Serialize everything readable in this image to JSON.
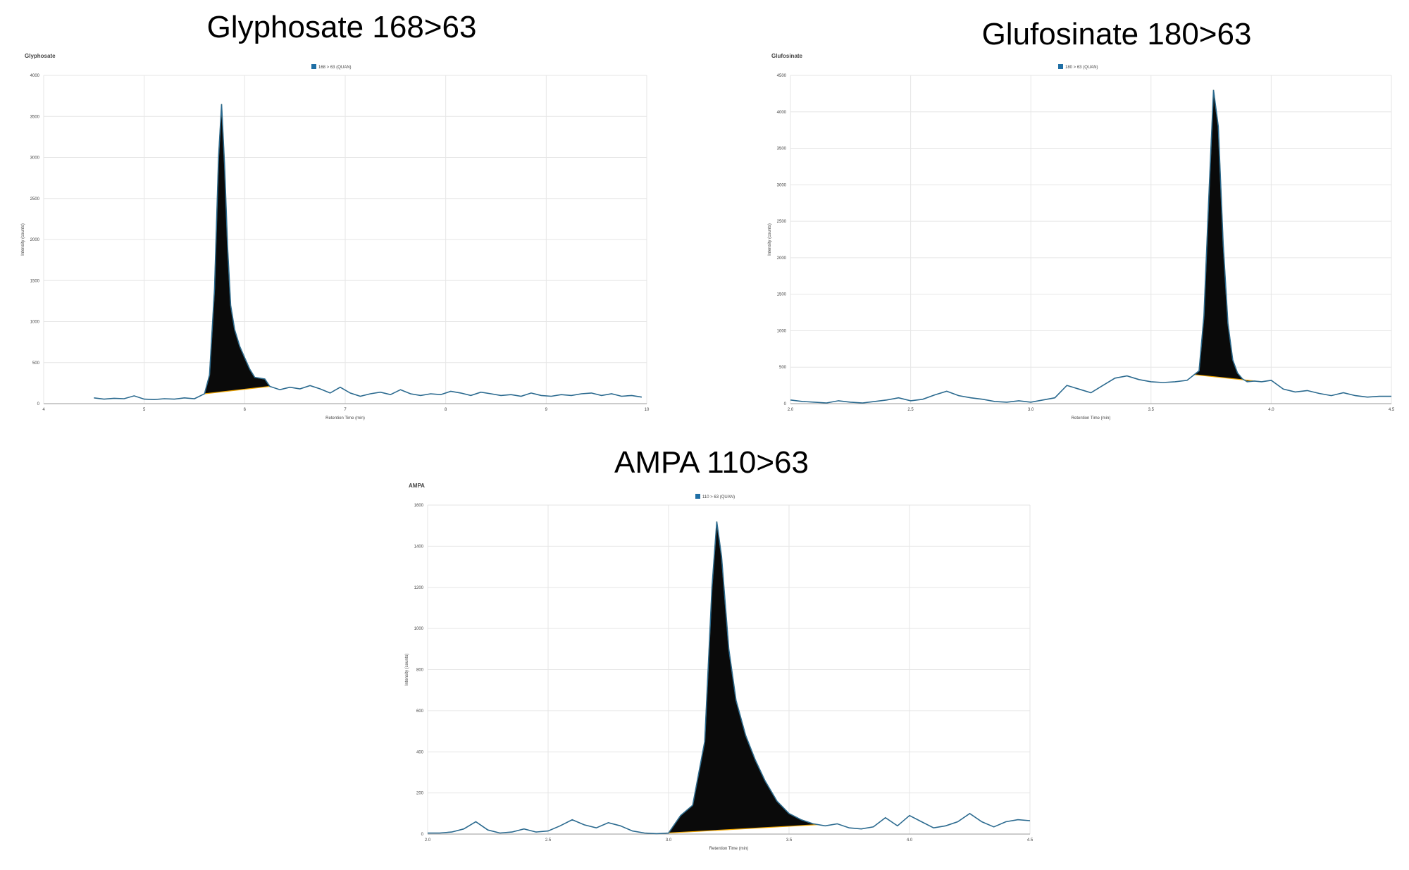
{
  "titles": {
    "glyphosate": "Glyphosate 168>63",
    "glufosinate": "Glufosinate 180>63",
    "ampa": "AMPA 110>63"
  },
  "colors": {
    "trace": "#2b6a8f",
    "peak_fill": "#0a0a0a",
    "baseline": "#f0a500",
    "grid": "#e6e6e6",
    "legend_swatch": "#1f6fa5"
  },
  "chart_data": [
    {
      "type": "line",
      "panel_label": "Glyphosate",
      "legend": "168 > 63 (QUAN)",
      "xlabel": "Retention Time (min)",
      "ylabel": "Intensity (counts)",
      "xlim": [
        4,
        10
      ],
      "ylim": [
        0,
        4000
      ],
      "xticks": [
        "4",
        "5",
        "6",
        "7",
        "8",
        "9",
        "10"
      ],
      "yticks": [
        "0",
        "500",
        "1000",
        "1500",
        "2000",
        "2500",
        "3000",
        "3500",
        "4000"
      ],
      "trace": {
        "x": [
          4.5,
          4.6,
          4.7,
          4.8,
          4.9,
          5.0,
          5.1,
          5.2,
          5.3,
          5.4,
          5.5,
          5.6,
          5.65,
          5.7,
          5.74,
          5.77,
          5.8,
          5.83,
          5.86,
          5.9,
          5.95,
          6.0,
          6.05,
          6.1,
          6.2,
          6.25,
          6.35,
          6.45,
          6.55,
          6.65,
          6.75,
          6.85,
          6.95,
          7.05,
          7.15,
          7.25,
          7.35,
          7.45,
          7.55,
          7.65,
          7.75,
          7.85,
          7.95,
          8.05,
          8.15,
          8.25,
          8.35,
          8.45,
          8.55,
          8.65,
          8.75,
          8.85,
          8.95,
          9.05,
          9.15,
          9.25,
          9.35,
          9.45,
          9.55,
          9.65,
          9.75,
          9.85,
          9.95
        ],
        "y": [
          70,
          55,
          65,
          60,
          95,
          55,
          50,
          60,
          55,
          70,
          60,
          120,
          350,
          1400,
          3000,
          3650,
          2900,
          1900,
          1200,
          900,
          700,
          560,
          420,
          320,
          300,
          210,
          170,
          200,
          180,
          220,
          180,
          130,
          200,
          130,
          90,
          120,
          140,
          110,
          170,
          120,
          100,
          120,
          110,
          150,
          130,
          100,
          140,
          120,
          100,
          110,
          90,
          130,
          100,
          90,
          110,
          100,
          120,
          130,
          100,
          120,
          90,
          100,
          80
        ]
      },
      "peak_range": [
        5.6,
        6.25
      ]
    },
    {
      "type": "line",
      "panel_label": "Glufosinate",
      "legend": "180 > 63 (QUAN)",
      "xlabel": "Retention Time (min)",
      "ylabel": "Intensity (counts)",
      "xlim": [
        2.0,
        4.5
      ],
      "ylim": [
        0,
        4500
      ],
      "xticks": [
        "2.0",
        "2.5",
        "3.0",
        "3.5",
        "4.0",
        "4.5"
      ],
      "yticks": [
        "0",
        "500",
        "1000",
        "1500",
        "2000",
        "2500",
        "3000",
        "3500",
        "4000",
        "4500"
      ],
      "trace": {
        "x": [
          2.0,
          2.05,
          2.1,
          2.15,
          2.2,
          2.25,
          2.3,
          2.35,
          2.4,
          2.45,
          2.5,
          2.55,
          2.6,
          2.65,
          2.7,
          2.75,
          2.8,
          2.85,
          2.9,
          2.95,
          3.0,
          3.05,
          3.1,
          3.15,
          3.2,
          3.25,
          3.3,
          3.35,
          3.4,
          3.45,
          3.5,
          3.55,
          3.6,
          3.65,
          3.7,
          3.72,
          3.74,
          3.76,
          3.78,
          3.8,
          3.82,
          3.84,
          3.86,
          3.88,
          3.9,
          3.93,
          3.96,
          4.0,
          4.05,
          4.1,
          4.15,
          4.2,
          4.25,
          4.3,
          4.35,
          4.4,
          4.45,
          4.5
        ],
        "y": [
          50,
          30,
          20,
          10,
          40,
          20,
          10,
          30,
          50,
          80,
          40,
          60,
          120,
          170,
          110,
          80,
          60,
          30,
          20,
          40,
          20,
          50,
          80,
          250,
          200,
          150,
          250,
          350,
          380,
          330,
          300,
          290,
          300,
          320,
          450,
          1200,
          2800,
          4300,
          3800,
          2200,
          1100,
          600,
          420,
          340,
          300,
          310,
          300,
          320,
          200,
          160,
          180,
          140,
          110,
          150,
          110,
          90,
          100,
          100
        ]
      },
      "peak_range": [
        3.68,
        3.96
      ]
    },
    {
      "type": "line",
      "panel_label": "AMPA",
      "legend": "110 > 63 (QUAN)",
      "xlabel": "Retention Time (min)",
      "ylabel": "Intensity (counts)",
      "xlim": [
        2.0,
        4.5
      ],
      "ylim": [
        0,
        1600
      ],
      "xticks": [
        "2.0",
        "2.5",
        "3.0",
        "3.5",
        "4.0",
        "4.5"
      ],
      "yticks": [
        "0",
        "200",
        "400",
        "600",
        "800",
        "1000",
        "1200",
        "1400",
        "1600"
      ],
      "trace": {
        "x": [
          2.0,
          2.05,
          2.1,
          2.15,
          2.2,
          2.25,
          2.3,
          2.35,
          2.4,
          2.45,
          2.5,
          2.55,
          2.6,
          2.65,
          2.7,
          2.75,
          2.8,
          2.85,
          2.9,
          2.95,
          3.0,
          3.05,
          3.1,
          3.15,
          3.18,
          3.2,
          3.22,
          3.25,
          3.28,
          3.32,
          3.36,
          3.4,
          3.45,
          3.5,
          3.55,
          3.6,
          3.65,
          3.7,
          3.75,
          3.8,
          3.85,
          3.9,
          3.95,
          4.0,
          4.05,
          4.1,
          4.15,
          4.2,
          4.25,
          4.3,
          4.35,
          4.4,
          4.45,
          4.5
        ],
        "y": [
          5,
          5,
          10,
          25,
          60,
          20,
          5,
          10,
          25,
          10,
          15,
          40,
          70,
          45,
          30,
          55,
          40,
          15,
          5,
          2,
          5,
          90,
          140,
          450,
          1200,
          1520,
          1350,
          900,
          650,
          480,
          360,
          260,
          160,
          100,
          70,
          50,
          40,
          50,
          30,
          25,
          35,
          80,
          40,
          90,
          60,
          30,
          40,
          60,
          100,
          60,
          35,
          60,
          70,
          65
        ]
      },
      "peak_range": [
        3.0,
        3.62
      ]
    }
  ]
}
